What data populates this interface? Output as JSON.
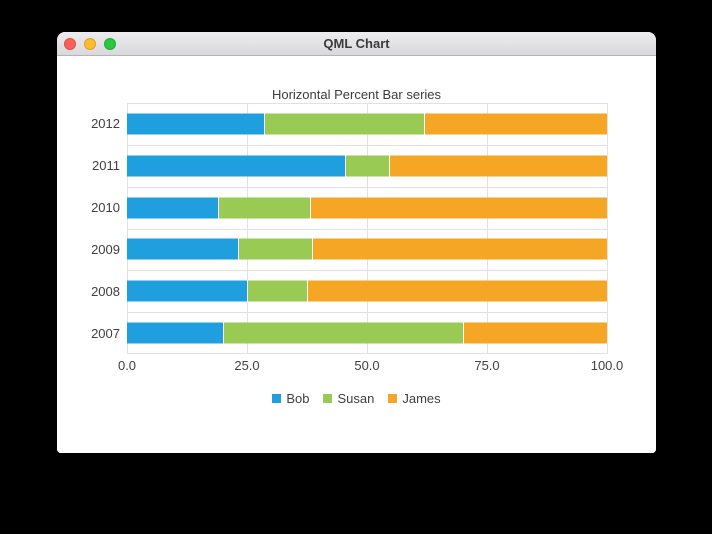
{
  "window": {
    "title": "QML Chart",
    "traffic_lights": {
      "close": "#ff5f57",
      "minimize": "#febc2e",
      "zoom": "#28c840"
    }
  },
  "chart_data": {
    "type": "bar",
    "orientation": "horizontal",
    "stacking": "percent",
    "title": "Horizontal Percent Bar series",
    "categories": [
      "2012",
      "2011",
      "2010",
      "2009",
      "2008",
      "2007"
    ],
    "series": [
      {
        "name": "Bob",
        "color": "#209fdf",
        "values": [
          6,
          5,
          4,
          3,
          2,
          2
        ]
      },
      {
        "name": "Susan",
        "color": "#99ca53",
        "values": [
          7,
          1,
          4,
          2,
          1,
          5
        ]
      },
      {
        "name": "James",
        "color": "#f6a625",
        "values": [
          8,
          5,
          13,
          8,
          5,
          3
        ]
      }
    ],
    "x_ticks": [
      "0.0",
      "25.0",
      "50.0",
      "75.0",
      "100.0"
    ],
    "xlim": [
      0,
      100
    ],
    "grid": true,
    "legend_position": "bottom"
  }
}
